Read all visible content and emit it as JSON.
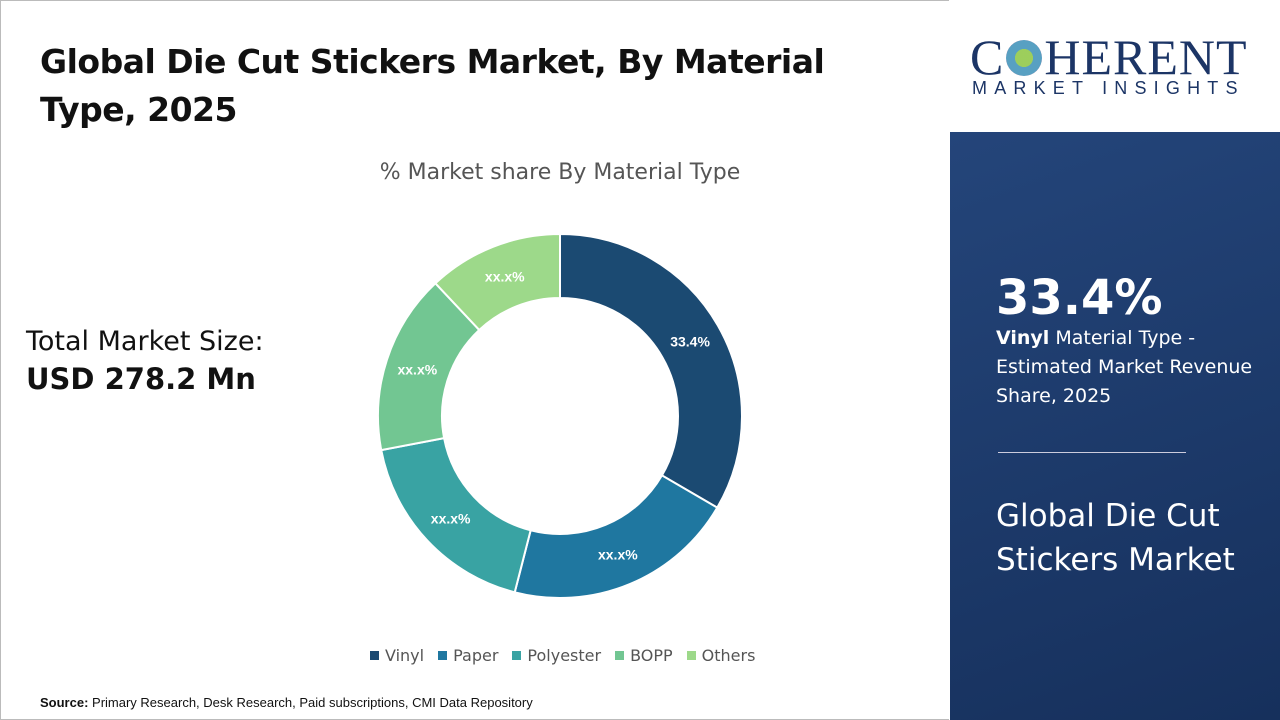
{
  "title": "Global Die Cut Stickers Market, By Material Type, 2025",
  "total_market": {
    "label": "Total Market Size:",
    "value": "USD 278.2 Mn"
  },
  "source": {
    "label": "Source:",
    "text": "Primary Research, Desk Research, Paid subscriptions, CMI Data Repository"
  },
  "logo": {
    "brand": "COHERENT",
    "tagline": "MARKET INSIGHTS"
  },
  "panel": {
    "highlight_value": "33.4%",
    "highlight_bold": "Vinyl",
    "highlight_text": " Material Type - Estimated Market Revenue Share, 2025",
    "market_name": "Global Die Cut Stickers Market"
  },
  "chart_data": {
    "type": "pie",
    "donut": true,
    "title": "% Market share By Material Type",
    "categories": [
      "Vinyl",
      "Paper",
      "Polyester",
      "BOPP",
      "Others"
    ],
    "values": [
      33.4,
      20.6,
      18.0,
      16.0,
      12.0
    ],
    "data_labels": [
      "33.4%",
      "xx.x%",
      "xx.x%",
      "xx.x%",
      "xx.x%"
    ],
    "colors": [
      "#1b4a72",
      "#1f77a0",
      "#39a3a3",
      "#72c692",
      "#9dd98a"
    ],
    "legend_position": "bottom"
  }
}
